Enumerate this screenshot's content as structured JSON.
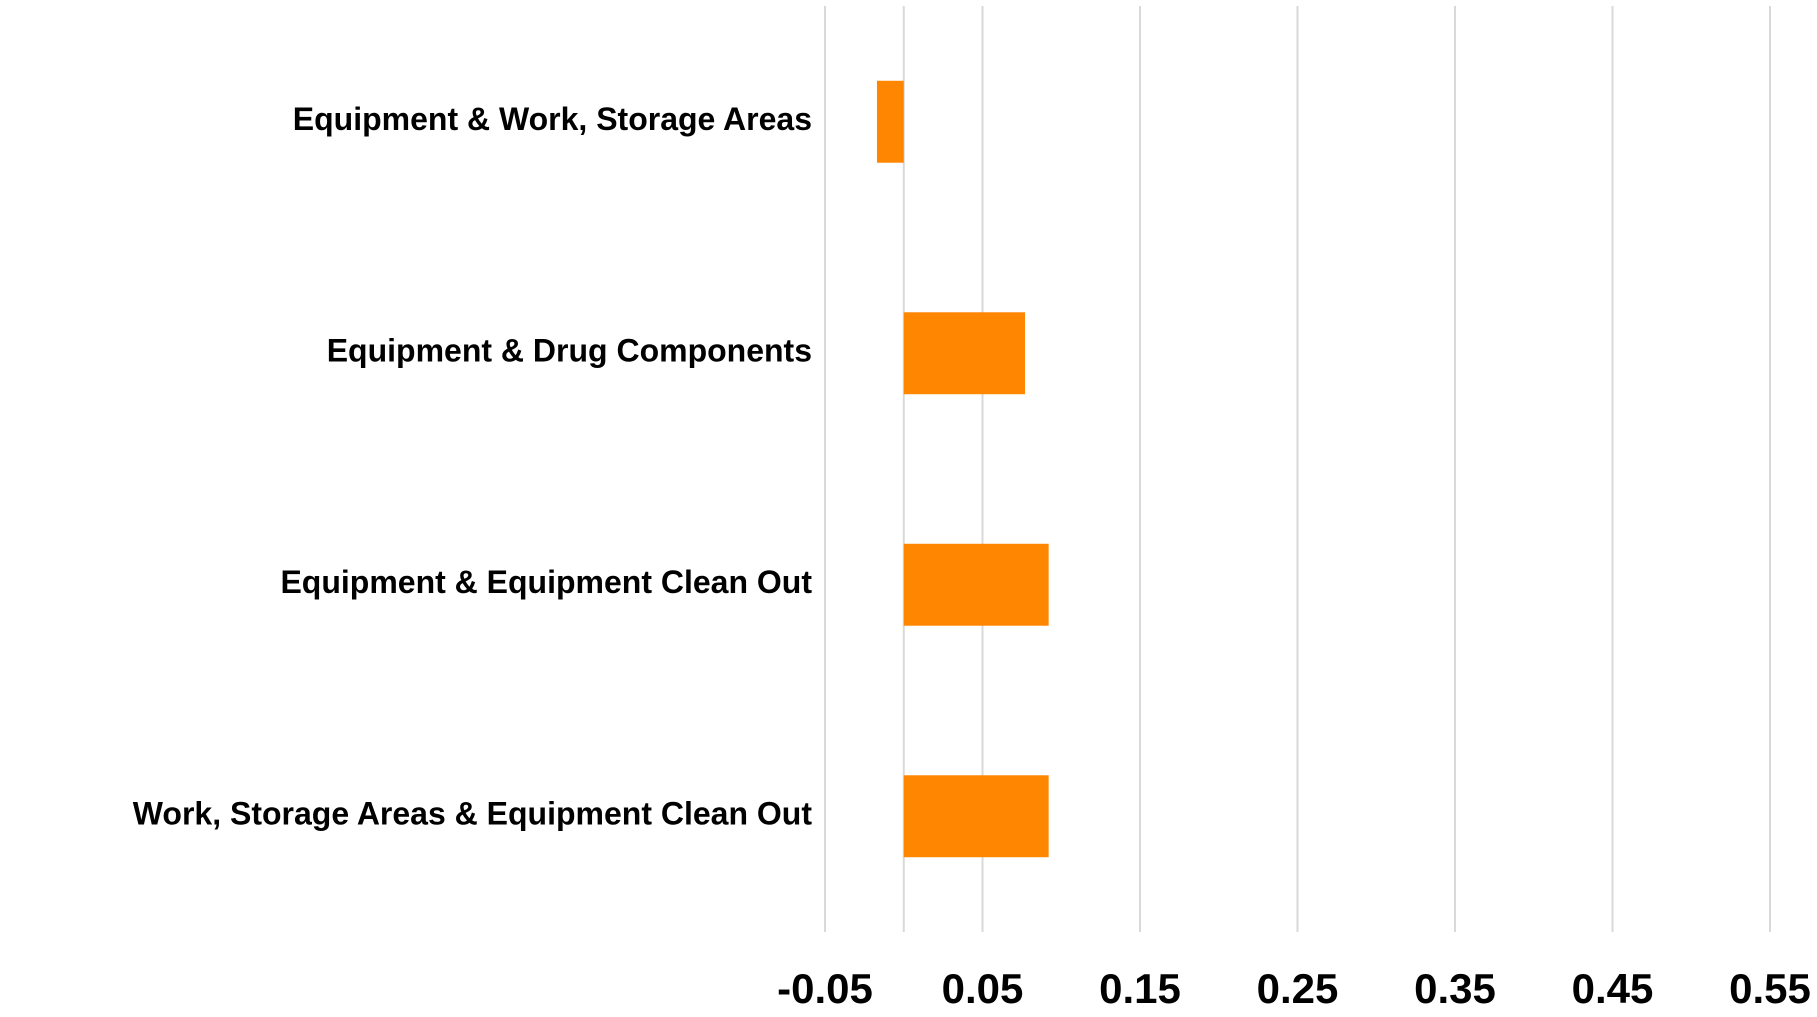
{
  "chart_data": {
    "type": "hbar",
    "categories": [
      "Equipment & Work, Storage Areas",
      "Equipment & Drug Components",
      "Equipment & Equipment Clean Out",
      "Work, Storage Areas & Equipment Clean Out"
    ],
    "values": [
      -0.017,
      0.077,
      0.092,
      0.092
    ],
    "color": "#ff8600",
    "xlim": [
      -0.05,
      0.55
    ],
    "xticks": [
      -0.05,
      0.05,
      0.15,
      0.25,
      0.35,
      0.45,
      0.55
    ],
    "grid": true
  }
}
